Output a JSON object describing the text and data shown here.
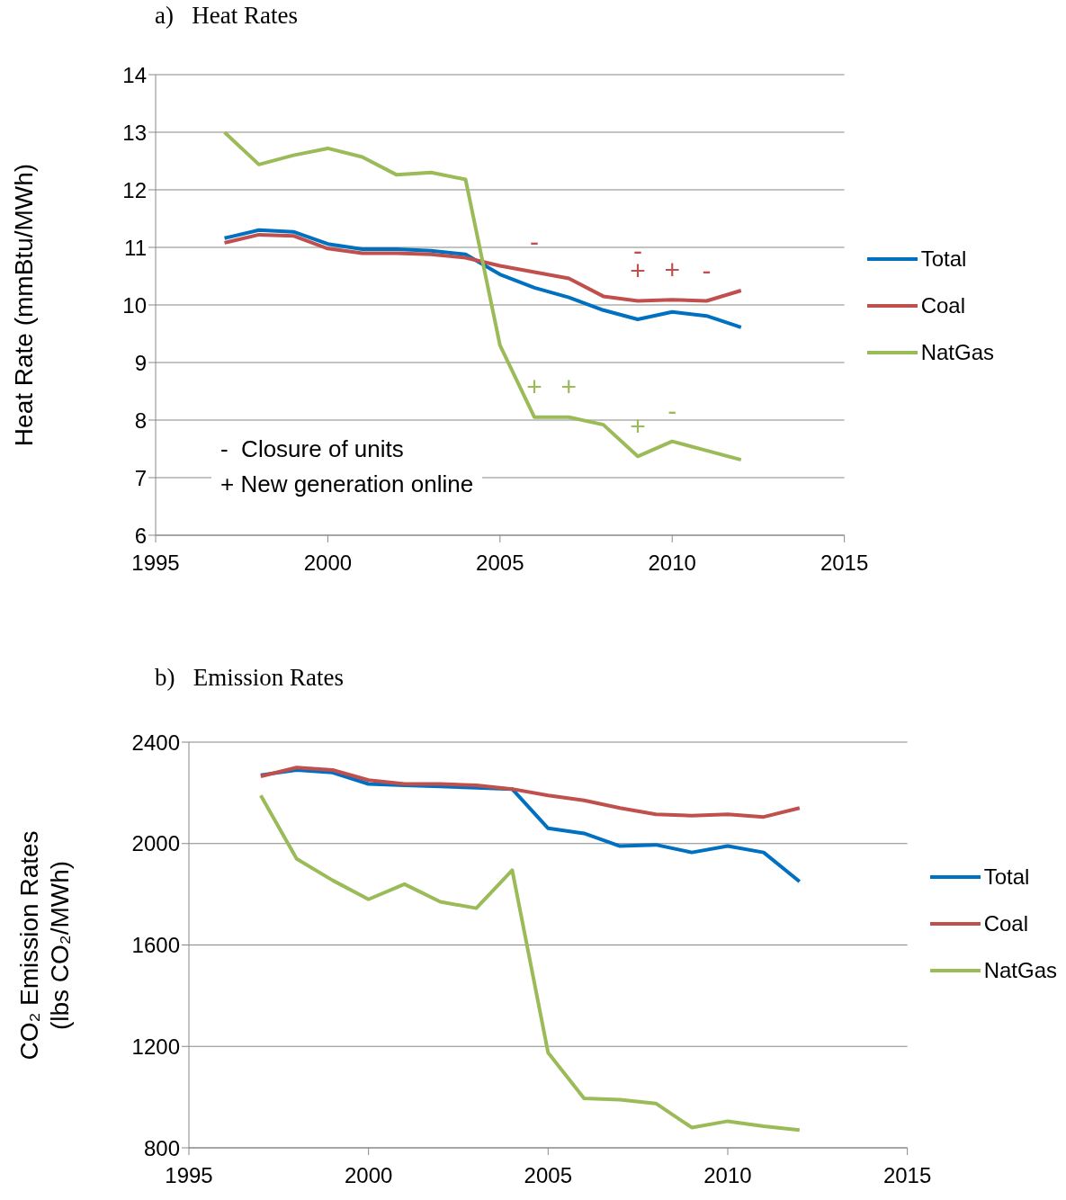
{
  "chart_data": [
    {
      "type": "line",
      "title": "a)   Heat Rates",
      "ylabel": "Heat Rate (mmBtu/MWh)",
      "x": [
        1997,
        1998,
        1999,
        2000,
        2001,
        2002,
        2003,
        2004,
        2005,
        2006,
        2007,
        2008,
        2009,
        2010,
        2011,
        2012
      ],
      "series": [
        {
          "name": "Total",
          "color": "#0070c0",
          "values": [
            11.16,
            11.3,
            11.27,
            11.06,
            10.97,
            10.97,
            10.94,
            10.88,
            10.53,
            10.3,
            10.13,
            9.91,
            9.75,
            9.88,
            9.81,
            9.61
          ]
        },
        {
          "name": "Coal",
          "color": "#c0504d",
          "values": [
            11.08,
            11.22,
            11.2,
            10.98,
            10.9,
            10.9,
            10.88,
            10.82,
            10.68,
            10.57,
            10.46,
            10.15,
            10.07,
            10.09,
            10.07,
            10.25
          ]
        },
        {
          "name": "NatGas",
          "color": "#9bbb59",
          "values": [
            13.0,
            12.44,
            12.6,
            12.72,
            12.57,
            12.26,
            12.3,
            12.18,
            9.3,
            8.05,
            8.05,
            7.92,
            7.37,
            7.63,
            7.47,
            7.31
          ]
        }
      ],
      "xlim": [
        1995,
        2015
      ],
      "xticks": [
        1995,
        2000,
        2005,
        2010,
        2015
      ],
      "ylim": [
        6,
        14
      ],
      "yticks": [
        6,
        7,
        8,
        9,
        10,
        11,
        12,
        13,
        14
      ],
      "grid": "y",
      "legend": "right",
      "marker": "none",
      "line_style": "solid",
      "annotations": [
        "-  Closure of units",
        "+ New generation online",
        {
          "text": "-",
          "x": 2006,
          "y": 10.57
        },
        {
          "text": "+",
          "x": 2009,
          "y": 10.07
        },
        {
          "text": "-",
          "x": 2009,
          "y": 10.07
        },
        {
          "text": "+",
          "x": 2010,
          "y": 10.09
        },
        {
          "text": "-",
          "x": 2011,
          "y": 10.07
        },
        {
          "text": "+",
          "x": 2006,
          "y": 8.05
        },
        {
          "text": "+",
          "x": 2007,
          "y": 8.05
        },
        {
          "text": "+",
          "x": 2009,
          "y": 7.37
        },
        {
          "text": "-",
          "x": 2010,
          "y": 7.63
        }
      ]
    },
    {
      "type": "line",
      "title": "b)   Emission Rates",
      "ylabel": "CO₂ Emission Rates\n(lbs CO₂/MWh)",
      "x": [
        1997,
        1998,
        1999,
        2000,
        2001,
        2002,
        2003,
        2004,
        2005,
        2006,
        2007,
        2008,
        2009,
        2010,
        2011,
        2012
      ],
      "series": [
        {
          "name": "Total",
          "color": "#0070c0",
          "values": [
            2270,
            2290,
            2280,
            2235,
            2230,
            2225,
            2220,
            2215,
            2060,
            2040,
            1990,
            1995,
            1965,
            1990,
            1965,
            1850
          ]
        },
        {
          "name": "Coal",
          "color": "#c0504d",
          "values": [
            2265,
            2300,
            2290,
            2250,
            2235,
            2235,
            2230,
            2215,
            2190,
            2170,
            2140,
            2115,
            2110,
            2115,
            2105,
            2140
          ]
        },
        {
          "name": "NatGas",
          "color": "#9bbb59",
          "values": [
            2190,
            1940,
            1855,
            1780,
            1840,
            1770,
            1745,
            1895,
            1175,
            995,
            990,
            975,
            880,
            905,
            885,
            870
          ]
        }
      ],
      "xlim": [
        1995,
        2015
      ],
      "xticks": [
        1995,
        2000,
        2005,
        2010,
        2015
      ],
      "ylim": [
        800,
        2400
      ],
      "yticks": [
        800,
        1200,
        1600,
        2000,
        2400
      ],
      "grid": "y",
      "legend": "right",
      "marker": "none",
      "line_style": "solid"
    }
  ]
}
